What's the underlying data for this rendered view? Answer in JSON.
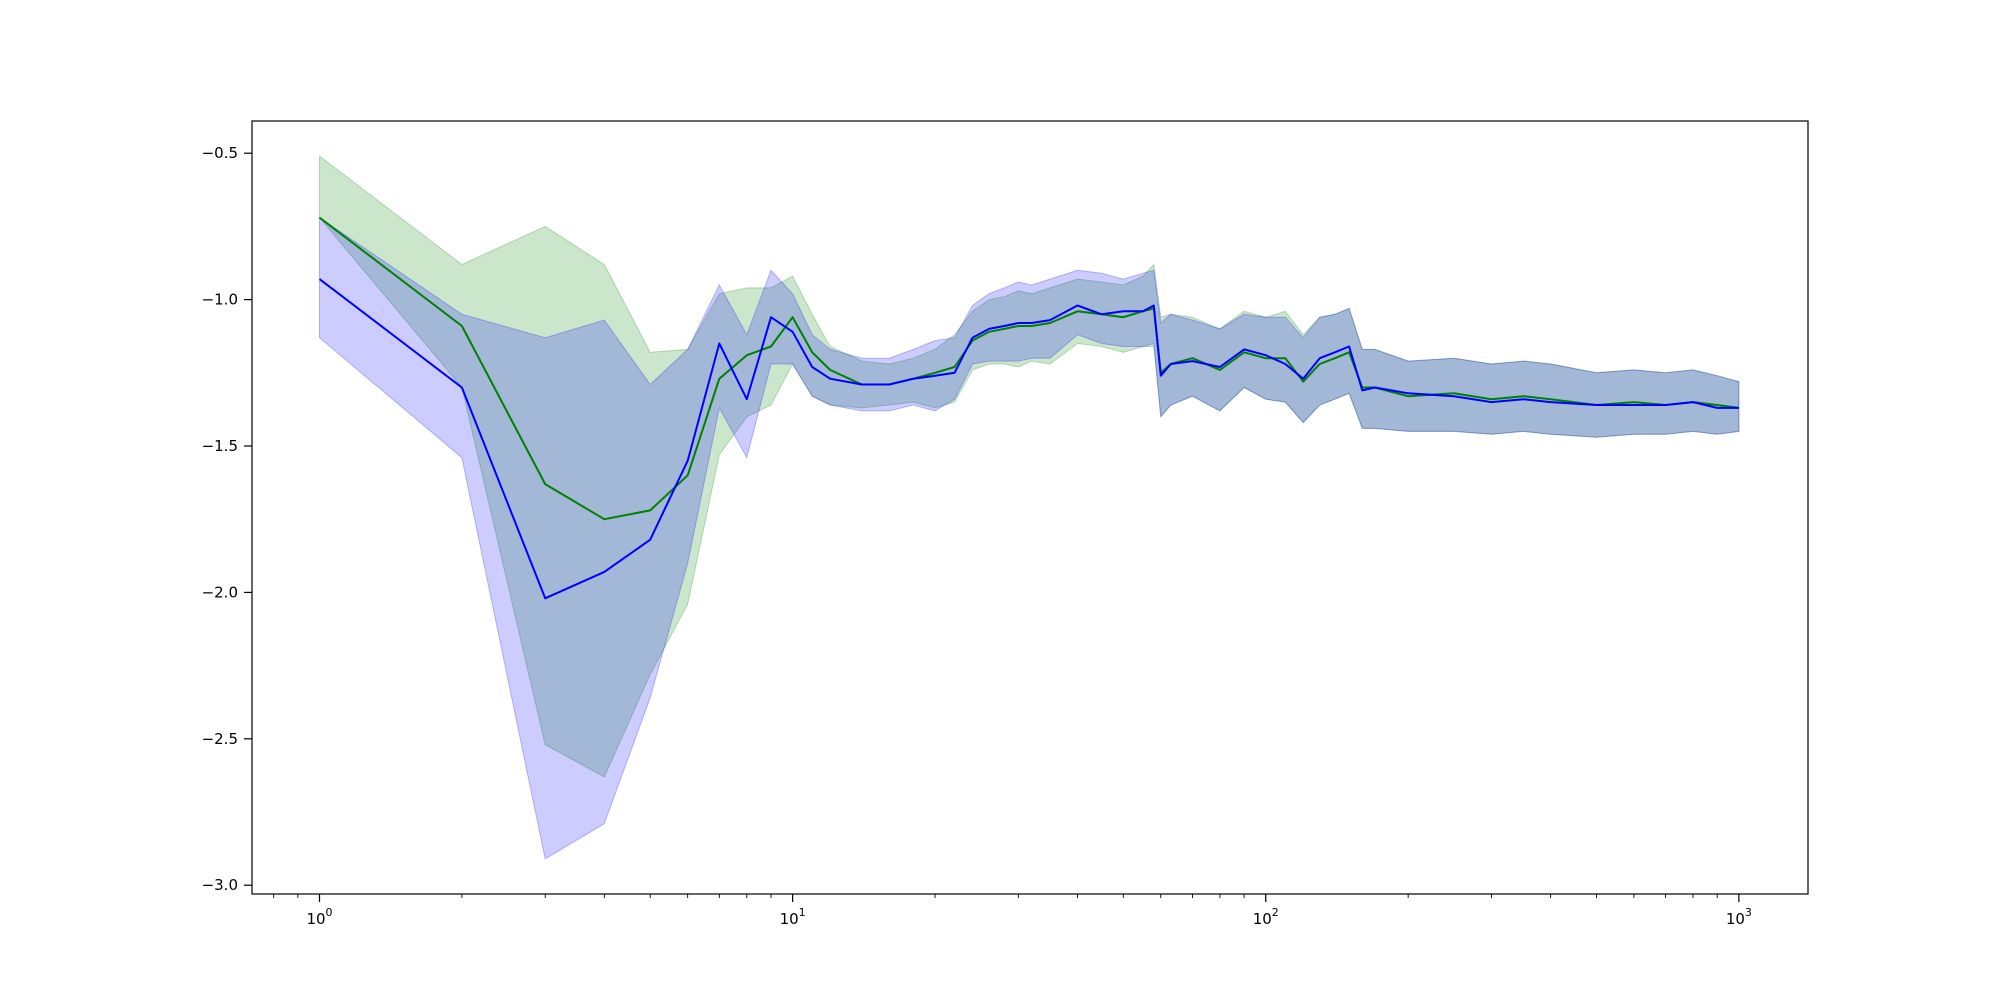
{
  "chart_data": {
    "type": "line",
    "title": "",
    "xlabel": "",
    "ylabel": "",
    "x_scale": "log",
    "xlim": [
      0.72,
      1400
    ],
    "ylim": [
      -3.03,
      -0.39
    ],
    "x_ticks": [
      1,
      10,
      100,
      1000
    ],
    "x_tick_labels": [
      {
        "base": "10",
        "exp": "0"
      },
      {
        "base": "10",
        "exp": "1"
      },
      {
        "base": "10",
        "exp": "2"
      },
      {
        "base": "10",
        "exp": "3"
      }
    ],
    "y_ticks": [
      -0.5,
      -1.0,
      -1.5,
      -2.0,
      -2.5,
      -3.0
    ],
    "y_tick_labels": [
      "−0.5",
      "−1.0",
      "−1.5",
      "−2.0",
      "−2.5",
      "−3.0"
    ],
    "grid": false,
    "legend": "none",
    "series": [
      {
        "color": "#008000",
        "band_color": "#008000",
        "x": [
          1,
          2,
          3,
          4,
          5,
          6,
          7,
          8,
          9,
          10,
          11,
          12,
          14,
          16,
          18,
          20,
          22,
          24,
          26,
          28,
          30,
          32,
          35,
          40,
          45,
          50,
          55,
          58,
          60,
          63,
          70,
          80,
          90,
          100,
          110,
          120,
          130,
          140,
          150,
          160,
          170,
          200,
          250,
          300,
          350,
          400,
          500,
          600,
          700,
          800,
          900,
          1000
        ],
        "values": [
          -0.72,
          -1.09,
          -1.63,
          -1.75,
          -1.72,
          -1.6,
          -1.27,
          -1.19,
          -1.16,
          -1.06,
          -1.18,
          -1.24,
          -1.29,
          -1.29,
          -1.27,
          -1.25,
          -1.23,
          -1.14,
          -1.11,
          -1.1,
          -1.09,
          -1.09,
          -1.08,
          -1.04,
          -1.05,
          -1.06,
          -1.04,
          -1.03,
          -1.25,
          -1.22,
          -1.2,
          -1.24,
          -1.18,
          -1.2,
          -1.2,
          -1.28,
          -1.22,
          -1.2,
          -1.18,
          -1.3,
          -1.3,
          -1.33,
          -1.32,
          -1.34,
          -1.33,
          -1.34,
          -1.36,
          -1.35,
          -1.36,
          -1.35,
          -1.36,
          -1.37
        ],
        "lower": [
          -0.72,
          -1.3,
          -2.52,
          -2.63,
          -2.28,
          -2.04,
          -1.53,
          -1.4,
          -1.36,
          -1.22,
          -1.33,
          -1.36,
          -1.37,
          -1.36,
          -1.35,
          -1.37,
          -1.35,
          -1.24,
          -1.22,
          -1.22,
          -1.23,
          -1.21,
          -1.22,
          -1.15,
          -1.16,
          -1.18,
          -1.16,
          -1.16,
          -1.4,
          -1.36,
          -1.33,
          -1.38,
          -1.3,
          -1.34,
          -1.35,
          -1.42,
          -1.36,
          -1.34,
          -1.32,
          -1.44,
          -1.44,
          -1.45,
          -1.45,
          -1.46,
          -1.45,
          -1.46,
          -1.47,
          -1.46,
          -1.46,
          -1.45,
          -1.46,
          -1.45
        ],
        "upper": [
          -0.51,
          -0.88,
          -0.75,
          -0.88,
          -1.18,
          -1.17,
          -0.98,
          -0.96,
          -0.96,
          -0.92,
          -1.05,
          -1.16,
          -1.21,
          -1.22,
          -1.2,
          -1.17,
          -1.12,
          -1.04,
          -1.0,
          -0.99,
          -0.97,
          -0.98,
          -0.96,
          -0.93,
          -0.94,
          -0.95,
          -0.92,
          -0.88,
          -1.06,
          -1.05,
          -1.06,
          -1.1,
          -1.04,
          -1.06,
          -1.04,
          -1.12,
          -1.06,
          -1.05,
          -1.03,
          -1.17,
          -1.17,
          -1.21,
          -1.2,
          -1.22,
          -1.21,
          -1.22,
          -1.25,
          -1.24,
          -1.25,
          -1.24,
          -1.26,
          -1.28
        ]
      },
      {
        "color": "#0000ff",
        "band_color": "#0000ff",
        "x": [
          1,
          2,
          3,
          4,
          5,
          6,
          7,
          8,
          9,
          10,
          11,
          12,
          14,
          16,
          18,
          20,
          22,
          24,
          26,
          28,
          30,
          32,
          35,
          40,
          45,
          50,
          55,
          58,
          60,
          63,
          70,
          80,
          90,
          100,
          110,
          120,
          130,
          140,
          150,
          160,
          170,
          200,
          250,
          300,
          350,
          400,
          500,
          600,
          700,
          800,
          900,
          1000
        ],
        "values": [
          -0.93,
          -1.3,
          -2.02,
          -1.93,
          -1.82,
          -1.55,
          -1.15,
          -1.34,
          -1.06,
          -1.11,
          -1.23,
          -1.27,
          -1.29,
          -1.29,
          -1.27,
          -1.26,
          -1.25,
          -1.13,
          -1.1,
          -1.09,
          -1.08,
          -1.08,
          -1.07,
          -1.02,
          -1.05,
          -1.04,
          -1.04,
          -1.02,
          -1.26,
          -1.22,
          -1.21,
          -1.23,
          -1.17,
          -1.19,
          -1.22,
          -1.27,
          -1.2,
          -1.18,
          -1.16,
          -1.31,
          -1.3,
          -1.32,
          -1.33,
          -1.35,
          -1.34,
          -1.35,
          -1.36,
          -1.36,
          -1.36,
          -1.35,
          -1.37,
          -1.37
        ],
        "lower": [
          -1.13,
          -1.54,
          -2.91,
          -2.79,
          -2.36,
          -1.9,
          -1.37,
          -1.54,
          -1.22,
          -1.22,
          -1.33,
          -1.36,
          -1.38,
          -1.38,
          -1.36,
          -1.38,
          -1.34,
          -1.22,
          -1.21,
          -1.21,
          -1.21,
          -1.2,
          -1.2,
          -1.12,
          -1.15,
          -1.16,
          -1.16,
          -1.15,
          -1.4,
          -1.36,
          -1.33,
          -1.38,
          -1.3,
          -1.34,
          -1.35,
          -1.42,
          -1.36,
          -1.34,
          -1.32,
          -1.44,
          -1.44,
          -1.45,
          -1.45,
          -1.46,
          -1.45,
          -1.46,
          -1.47,
          -1.46,
          -1.46,
          -1.45,
          -1.46,
          -1.45
        ],
        "upper": [
          -0.72,
          -1.05,
          -1.13,
          -1.07,
          -1.29,
          -1.17,
          -0.95,
          -1.12,
          -0.9,
          -0.98,
          -1.12,
          -1.17,
          -1.2,
          -1.2,
          -1.17,
          -1.14,
          -1.13,
          -1.02,
          -0.98,
          -0.96,
          -0.94,
          -0.95,
          -0.93,
          -0.9,
          -0.91,
          -0.93,
          -0.91,
          -0.9,
          -1.08,
          -1.05,
          -1.07,
          -1.1,
          -1.05,
          -1.06,
          -1.06,
          -1.13,
          -1.06,
          -1.05,
          -1.03,
          -1.17,
          -1.17,
          -1.21,
          -1.2,
          -1.22,
          -1.21,
          -1.22,
          -1.25,
          -1.24,
          -1.25,
          -1.24,
          -1.26,
          -1.28
        ]
      }
    ]
  }
}
